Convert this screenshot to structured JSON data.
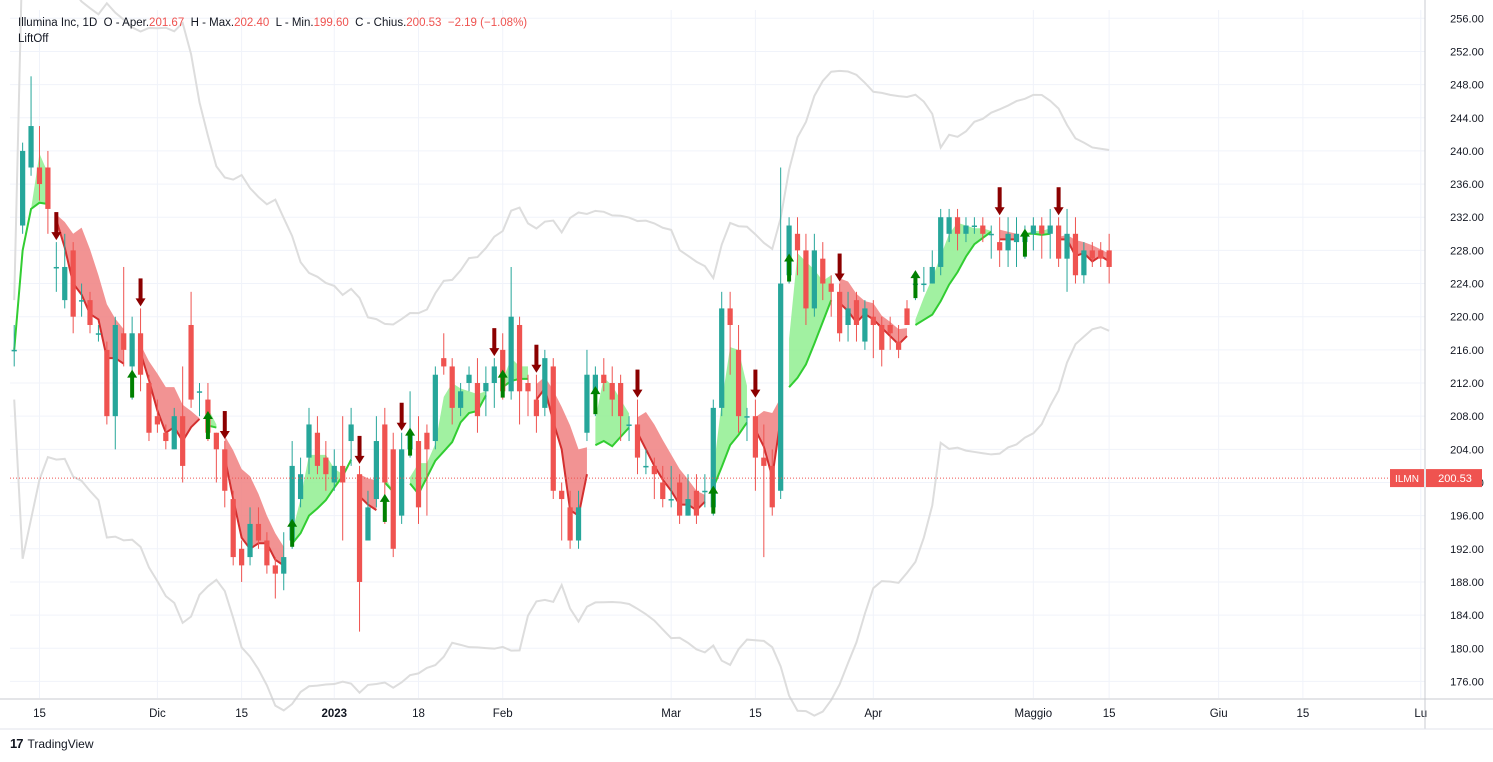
{
  "header": {
    "symbol": "Illumina Inc, 1D",
    "open_label": "O - Aper.",
    "open": "201.67",
    "high_label": "H - Max.",
    "high": "202.40",
    "low_label": "L - Min.",
    "low": "199.60",
    "close_label": "C - Chius.",
    "close": "200.53",
    "change": "−2.19 (−1.08%)",
    "indicator": "LiftOff"
  },
  "price_tag": {
    "ticker": "ILMN",
    "price": "200.53"
  },
  "brand": {
    "name": "TradingView",
    "logo": "17"
  },
  "colors": {
    "up": "#26a69a",
    "down": "#ef5350",
    "band_up": "#90ee90",
    "band_down": "#f08080",
    "line_up": "#32cd32",
    "line_down": "#d32f2f",
    "envelope": "#dddddd",
    "arrow_up": "#008000",
    "arrow_down": "#8b0000"
  },
  "chart_data": {
    "type": "candlestick",
    "ylim": [
      174,
      257
    ],
    "y_ticks": [
      "256.00",
      "252.00",
      "248.00",
      "244.00",
      "240.00",
      "236.00",
      "232.00",
      "228.00",
      "224.00",
      "220.00",
      "216.00",
      "212.00",
      "208.00",
      "204.00",
      "200.00",
      "196.00",
      "192.00",
      "188.00",
      "184.00",
      "180.00",
      "176.00"
    ],
    "x_ticks": [
      "15",
      "Dic",
      "15",
      "2023",
      "18",
      "Feb",
      "Mar",
      "15",
      "Apr",
      "Maggio",
      "15",
      "Giu",
      "15",
      "Lu"
    ],
    "x_tick_index": [
      3,
      17,
      27,
      38,
      48,
      58,
      78,
      88,
      102,
      121,
      130,
      143,
      153,
      167
    ],
    "candles": [
      [
        216.0,
        216.0,
        219.0,
        214.0
      ],
      [
        231.0,
        240.0,
        241.0,
        230.0
      ],
      [
        238.0,
        243.0,
        249.0,
        237.0
      ],
      [
        238.0,
        236.0,
        243.0,
        234.0
      ],
      [
        238.0,
        233.0,
        240.0,
        230.0
      ],
      [
        226.0,
        226.0,
        229.0,
        223.0
      ],
      [
        222.0,
        226.0,
        230.0,
        221.0
      ],
      [
        228.0,
        220.0,
        229.0,
        218.0
      ],
      [
        222.0,
        222.0,
        224.0,
        220.0
      ],
      [
        222.0,
        219.0,
        223.0,
        218.0
      ],
      [
        218.0,
        218.0,
        219.0,
        217.0
      ],
      [
        216.0,
        208.0,
        217.0,
        207.0
      ],
      [
        208.0,
        219.0,
        220.0,
        204.0
      ],
      [
        218.0,
        216.0,
        226.0,
        214.0
      ],
      [
        214.0,
        218.0,
        220.0,
        210.0
      ],
      [
        218.0,
        213.0,
        221.0,
        211.0
      ],
      [
        212.0,
        206.0,
        213.0,
        205.0
      ],
      [
        208.0,
        207.0,
        210.0,
        206.0
      ],
      [
        206.0,
        205.0,
        207.0,
        204.0
      ],
      [
        204.0,
        208.0,
        209.0,
        204.0
      ],
      [
        208.0,
        202.0,
        214.0,
        200.0
      ],
      [
        219.0,
        210.0,
        223.0,
        209.0
      ],
      [
        211.0,
        211.0,
        212.0,
        208.0
      ],
      [
        210.0,
        206.0,
        212.0,
        205.0
      ],
      [
        206.0,
        204.0,
        206.0,
        200.0
      ],
      [
        204.0,
        199.0,
        205.0,
        197.0
      ],
      [
        198.0,
        191.0,
        199.0,
        190.0
      ],
      [
        192.0,
        190.0,
        193.0,
        188.0
      ],
      [
        191.0,
        195.0,
        197.0,
        190.0
      ],
      [
        195.0,
        193.0,
        197.0,
        192.0
      ],
      [
        193.0,
        190.0,
        194.0,
        189.0
      ],
      [
        190.0,
        189.0,
        191.0,
        186.0
      ],
      [
        189.0,
        191.0,
        194.0,
        187.0
      ],
      [
        193.0,
        202.0,
        205.0,
        192.0
      ],
      [
        198.0,
        201.0,
        203.0,
        197.0
      ],
      [
        203.0,
        207.0,
        209.0,
        201.0
      ],
      [
        206.0,
        202.0,
        208.0,
        201.0
      ],
      [
        203.0,
        201.0,
        205.0,
        199.0
      ],
      [
        200.0,
        202.0,
        204.0,
        199.0
      ],
      [
        202.0,
        200.0,
        208.0,
        193.0
      ],
      [
        205.0,
        207.0,
        209.0,
        202.0
      ],
      [
        201.0,
        188.0,
        202.0,
        182.0
      ],
      [
        193.0,
        197.0,
        199.0,
        195.0
      ],
      [
        198.0,
        205.0,
        208.0,
        197.0
      ],
      [
        207.0,
        200.0,
        209.0,
        195.0
      ],
      [
        204.0,
        192.0,
        206.0,
        191.0
      ],
      [
        196.0,
        204.0,
        206.0,
        195.0
      ],
      [
        204.0,
        206.0,
        211.0,
        203.0
      ],
      [
        205.0,
        197.0,
        208.0,
        195.0
      ],
      [
        206.0,
        204.0,
        207.0,
        196.0
      ],
      [
        205.0,
        213.0,
        214.0,
        204.0
      ],
      [
        215.0,
        214.0,
        218.0,
        213.0
      ],
      [
        214.0,
        209.0,
        215.0,
        207.0
      ],
      [
        209.0,
        211.0,
        212.0,
        208.0
      ],
      [
        212.0,
        213.0,
        214.0,
        211.0
      ],
      [
        212.0,
        208.0,
        215.0,
        206.0
      ],
      [
        211.0,
        212.0,
        214.0,
        208.0
      ],
      [
        212.0,
        214.0,
        215.0,
        209.0
      ],
      [
        216.0,
        211.0,
        218.0,
        210.0
      ],
      [
        211.0,
        220.0,
        226.0,
        210.0
      ],
      [
        219.0,
        211.0,
        220.0,
        207.0
      ],
      [
        212.0,
        211.0,
        213.0,
        208.0
      ],
      [
        210.0,
        208.0,
        213.0,
        206.0
      ],
      [
        209.0,
        215.0,
        216.0,
        208.0
      ],
      [
        214.0,
        199.0,
        215.0,
        198.0
      ],
      [
        199.0,
        198.0,
        200.0,
        193.0
      ],
      [
        197.0,
        193.0,
        199.0,
        192.0
      ],
      [
        193.0,
        197.0,
        199.0,
        192.0
      ],
      [
        206.0,
        213.0,
        216.0,
        205.0
      ],
      [
        211.0,
        213.0,
        214.0,
        208.0
      ],
      [
        213.0,
        212.0,
        215.0,
        211.0
      ],
      [
        212.0,
        210.0,
        214.0,
        208.0
      ],
      [
        212.0,
        208.0,
        213.0,
        205.0
      ],
      [
        207.0,
        207.0,
        208.0,
        205.0
      ],
      [
        207.0,
        203.0,
        210.0,
        201.0
      ],
      [
        202.0,
        202.0,
        204.0,
        201.0
      ],
      [
        202.0,
        201.0,
        203.0,
        198.0
      ],
      [
        200.0,
        198.0,
        202.0,
        197.0
      ],
      [
        198.0,
        198.0,
        202.0,
        197.0
      ],
      [
        200.0,
        196.0,
        201.0,
        195.0
      ],
      [
        196.0,
        198.0,
        201.0,
        196.0
      ],
      [
        199.0,
        196.0,
        201.0,
        195.0
      ],
      [
        199.0,
        199.0,
        201.0,
        197.0
      ],
      [
        197.0,
        209.0,
        210.0,
        196.0
      ],
      [
        209.0,
        221.0,
        223.0,
        208.0
      ],
      [
        221.0,
        219.0,
        223.0,
        213.0
      ],
      [
        216.0,
        208.0,
        219.0,
        206.0
      ],
      [
        208.0,
        208.0,
        209.0,
        205.0
      ],
      [
        208.0,
        203.0,
        210.0,
        199.0
      ],
      [
        203.0,
        202.0,
        207.0,
        191.0
      ],
      [
        202.0,
        197.0,
        204.0,
        196.0
      ],
      [
        199.0,
        224.0,
        238.0,
        198.0
      ],
      [
        225.0,
        231.0,
        232.0,
        224.0
      ],
      [
        230.0,
        228.0,
        232.0,
        225.0
      ],
      [
        228.0,
        221.0,
        230.0,
        219.0
      ],
      [
        221.0,
        228.0,
        230.0,
        220.0
      ],
      [
        227.0,
        224.0,
        229.0,
        222.0
      ],
      [
        224.0,
        223.0,
        225.0,
        220.0
      ],
      [
        223.0,
        218.0,
        224.0,
        217.0
      ],
      [
        219.0,
        221.0,
        223.0,
        217.0
      ],
      [
        222.0,
        219.0,
        223.0,
        217.0
      ],
      [
        217.0,
        221.0,
        222.0,
        216.0
      ],
      [
        220.0,
        219.0,
        222.0,
        215.0
      ],
      [
        219.0,
        216.0,
        220.0,
        214.0
      ],
      [
        219.0,
        218.0,
        220.0,
        216.0
      ],
      [
        217.0,
        216.0,
        219.0,
        215.0
      ],
      [
        221.0,
        219.0,
        222.0,
        219.0
      ],
      [
        224.0,
        224.0,
        225.0,
        222.0
      ],
      [
        224.0,
        224.0,
        226.0,
        223.0
      ],
      [
        224.0,
        226.0,
        228.0,
        224.0
      ],
      [
        226.0,
        232.0,
        233.0,
        225.0
      ],
      [
        230.0,
        232.0,
        233.0,
        229.0
      ],
      [
        232.0,
        230.0,
        233.0,
        228.0
      ],
      [
        230.0,
        231.0,
        232.0,
        229.0
      ],
      [
        231.0,
        231.0,
        232.0,
        230.0
      ],
      [
        231.0,
        230.0,
        232.0,
        229.0
      ],
      [
        230.0,
        230.0,
        231.0,
        227.0
      ],
      [
        229.0,
        228.0,
        232.0,
        226.0
      ],
      [
        228.0,
        230.0,
        232.0,
        226.0
      ],
      [
        229.0,
        230.0,
        232.0,
        226.0
      ],
      [
        229.0,
        230.0,
        231.0,
        227.0
      ],
      [
        230.0,
        231.0,
        232.0,
        228.0
      ],
      [
        231.0,
        230.0,
        232.0,
        227.0
      ],
      [
        230.0,
        231.0,
        233.0,
        227.0
      ],
      [
        231.0,
        227.0,
        232.0,
        226.0
      ],
      [
        227.0,
        230.0,
        233.0,
        223.0
      ],
      [
        230.0,
        225.0,
        232.0,
        224.0
      ],
      [
        225.0,
        228.0,
        229.0,
        224.0
      ],
      [
        228.0,
        227.0,
        229.0,
        226.0
      ],
      [
        228.0,
        227.0,
        229.0,
        226.0
      ],
      [
        228.0,
        226.0,
        230.0,
        224.0
      ]
    ],
    "note": "Values estimated from chart"
  }
}
